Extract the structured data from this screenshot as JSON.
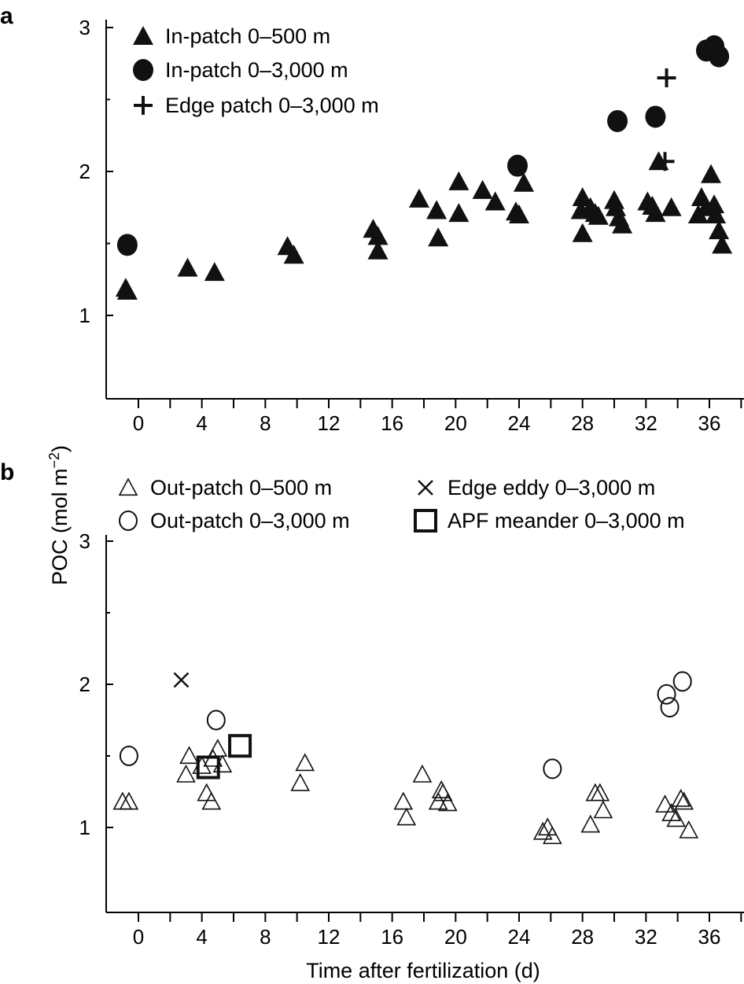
{
  "ylabel": "POC (mol m",
  "ylabel_sup": "−2",
  "ylabel_close": ")",
  "xlabel": "Time after fertilization (d)",
  "chart_data": [
    {
      "panel": "a",
      "type": "scatter",
      "xlim": [
        -1,
        37.5
      ],
      "ylim": [
        0.5,
        3
      ],
      "xticks": [
        0,
        4,
        8,
        12,
        16,
        20,
        24,
        28,
        32,
        36
      ],
      "yticks": [
        1,
        2,
        3
      ],
      "legend": "top-left",
      "series": [
        {
          "name": "In-patch 0–500 m",
          "marker": "filled-triangle",
          "points": [
            [
              -0.7,
              1.17
            ],
            [
              -0.8,
              1.19
            ],
            [
              3.1,
              1.33
            ],
            [
              4.8,
              1.3
            ],
            [
              9.4,
              1.48
            ],
            [
              9.8,
              1.42
            ],
            [
              14.8,
              1.6
            ],
            [
              15.1,
              1.55
            ],
            [
              15.1,
              1.45
            ],
            [
              17.7,
              1.81
            ],
            [
              18.8,
              1.73
            ],
            [
              18.9,
              1.54
            ],
            [
              20.2,
              1.93
            ],
            [
              20.2,
              1.71
            ],
            [
              21.7,
              1.87
            ],
            [
              22.5,
              1.79
            ],
            [
              23.8,
              1.72
            ],
            [
              24.0,
              1.7
            ],
            [
              24.3,
              1.92
            ],
            [
              28.0,
              1.82
            ],
            [
              27.9,
              1.73
            ],
            [
              28.0,
              1.57
            ],
            [
              28.5,
              1.75
            ],
            [
              28.8,
              1.71
            ],
            [
              29.0,
              1.69
            ],
            [
              30.0,
              1.8
            ],
            [
              30.1,
              1.75
            ],
            [
              30.3,
              1.68
            ],
            [
              30.5,
              1.63
            ],
            [
              32.1,
              1.79
            ],
            [
              32.4,
              1.76
            ],
            [
              32.6,
              1.71
            ],
            [
              32.8,
              2.07
            ],
            [
              33.6,
              1.75
            ],
            [
              35.3,
              1.7
            ],
            [
              35.5,
              1.82
            ],
            [
              35.8,
              1.75
            ],
            [
              36.1,
              1.98
            ],
            [
              36.3,
              1.77
            ],
            [
              36.4,
              1.7
            ],
            [
              36.6,
              1.59
            ],
            [
              36.8,
              1.49
            ]
          ]
        },
        {
          "name": "In-patch 0–3,000 m",
          "marker": "filled-circle",
          "points": [
            [
              -0.7,
              1.49
            ],
            [
              23.9,
              2.04
            ],
            [
              30.2,
              2.35
            ],
            [
              32.6,
              2.38
            ],
            [
              35.8,
              2.84
            ],
            [
              36.3,
              2.87
            ],
            [
              36.6,
              2.8
            ]
          ]
        },
        {
          "name": "Edge patch 0–3,000 m",
          "marker": "plus",
          "points": [
            [
              33.3,
              2.65
            ],
            [
              33.2,
              2.07
            ]
          ]
        }
      ]
    },
    {
      "panel": "b",
      "type": "scatter",
      "xlim": [
        -1,
        37.5
      ],
      "ylim": [
        0.5,
        3
      ],
      "xticks": [
        0,
        4,
        8,
        12,
        16,
        20,
        24,
        28,
        32,
        36
      ],
      "yticks": [
        1,
        2,
        3
      ],
      "legend": "top",
      "series": [
        {
          "name": "Out-patch 0–500 m",
          "marker": "open-triangle",
          "points": [
            [
              -1.0,
              1.18
            ],
            [
              -0.6,
              1.18
            ],
            [
              3.0,
              1.37
            ],
            [
              3.2,
              1.5
            ],
            [
              4.0,
              1.43
            ],
            [
              4.3,
              1.24
            ],
            [
              4.6,
              1.18
            ],
            [
              4.7,
              1.48
            ],
            [
              5.0,
              1.55
            ],
            [
              5.3,
              1.44
            ],
            [
              10.2,
              1.31
            ],
            [
              10.5,
              1.45
            ],
            [
              16.7,
              1.18
            ],
            [
              16.9,
              1.07
            ],
            [
              17.9,
              1.37
            ],
            [
              18.9,
              1.18
            ],
            [
              19.1,
              1.26
            ],
            [
              19.2,
              1.24
            ],
            [
              19.5,
              1.17
            ],
            [
              25.5,
              0.97
            ],
            [
              25.8,
              1.0
            ],
            [
              26.1,
              0.94
            ],
            [
              28.5,
              1.02
            ],
            [
              28.8,
              1.24
            ],
            [
              29.1,
              1.24
            ],
            [
              29.3,
              1.12
            ],
            [
              33.2,
              1.16
            ],
            [
              33.6,
              1.1
            ],
            [
              33.9,
              1.06
            ],
            [
              34.2,
              1.2
            ],
            [
              34.4,
              1.18
            ],
            [
              34.7,
              0.98
            ]
          ]
        },
        {
          "name": "Out-patch 0–3,000 m",
          "marker": "open-circle",
          "points": [
            [
              -0.6,
              1.5
            ],
            [
              4.9,
              1.75
            ],
            [
              26.1,
              1.41
            ],
            [
              33.3,
              1.93
            ],
            [
              33.5,
              1.84
            ],
            [
              34.3,
              2.02
            ]
          ]
        },
        {
          "name": "Edge eddy 0–3,000 m",
          "marker": "cross",
          "points": [
            [
              2.7,
              2.03
            ]
          ]
        },
        {
          "name": "APF meander 0–3,000 m",
          "marker": "open-square",
          "points": [
            [
              4.4,
              1.42
            ],
            [
              6.4,
              1.57
            ]
          ]
        }
      ]
    }
  ]
}
